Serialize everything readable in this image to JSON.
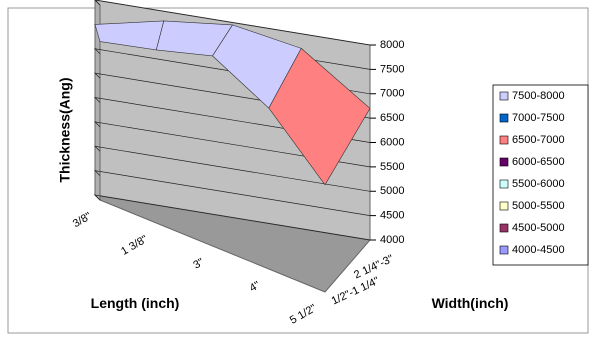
{
  "chart_data": {
    "type": "surface",
    "y_label": "Thickness(Ang)",
    "x_label": "Length (inch)",
    "z_label": "Width(inch)",
    "categories": [
      "3/8\"",
      "1 3/8\"",
      "3\"",
      "4\"",
      "5 1/2\""
    ],
    "depth_categories": [
      "1/2\"-1 1/4\"",
      "2 1/4\"-3\""
    ],
    "values": [
      [
        7250,
        7550,
        7900,
        7300,
        6200
      ],
      [
        7500,
        7800,
        7950,
        7700,
        6700
      ]
    ],
    "ylim": [
      4000,
      8000
    ],
    "yticks": [
      4000,
      4500,
      5000,
      5500,
      6000,
      6500,
      7000,
      7500,
      8000
    ],
    "grid": true,
    "legend_position": "right",
    "series": [
      {
        "name": "7500-8000",
        "color": "#ccccff"
      },
      {
        "name": "7000-7500",
        "color": "#0066cc"
      },
      {
        "name": "6500-7000",
        "color": "#ff8080"
      },
      {
        "name": "6000-6500",
        "color": "#660066"
      },
      {
        "name": "5500-6000",
        "color": "#ccffff"
      },
      {
        "name": "5000-5500",
        "color": "#ffffcc"
      },
      {
        "name": "4500-5000",
        "color": "#993366"
      },
      {
        "name": "4000-4500",
        "color": "#9999ff"
      }
    ]
  }
}
